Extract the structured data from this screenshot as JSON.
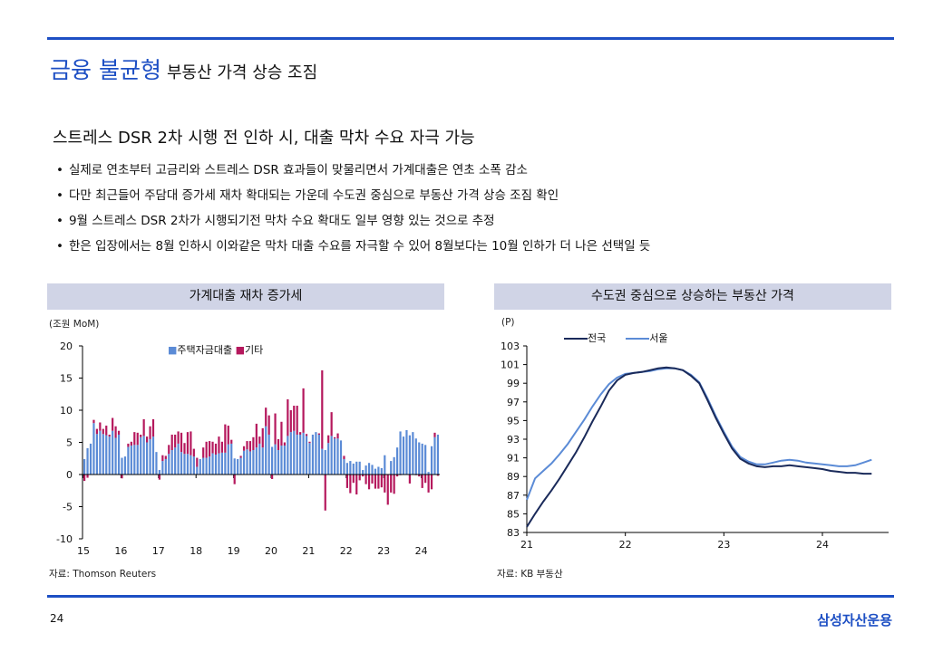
{
  "header": {
    "title_accent": "금융 불균형",
    "title_rest": "부동산 가격 상승 조짐"
  },
  "subtitle": "스트레스 DSR 2차 시행 전 인하 시, 대출 막차 수요 자극 가능",
  "bullets": [
    "실제로 연초부터 고금리와 스트레스 DSR 효과들이 맞물리면서 가계대출은 연초 소폭 감소",
    "다만 최근들어 주담대 증가세 재차 확대되는 가운데 수도권 중심으로 부동산 가격 상승 조짐 확인",
    "9월 스트레스 DSR 2차가 시행되기전 막차 수요 확대도 일부 영향 있는 것으로 추정",
    "한은 입장에서는 8월 인하시 이와같은 막차 대출 수요를 자극할 수 있어 8월보다는 10월 인하가 더 나은 선택일 듯"
  ],
  "footer": {
    "page": "24",
    "logo": "삼성자산운용"
  },
  "colors": {
    "accent": "#1d4fc4",
    "housing": "#5b8bd6",
    "other": "#b5185d",
    "nation": "#1a2a5a",
    "seoul": "#5b8bd6"
  },
  "chart_data": [
    {
      "type": "bar",
      "title": "가계대출 재차 증가세",
      "unit": "(조원 MoM)",
      "source": "자료:  Thomson Reuters",
      "ylim": [
        -10,
        20
      ],
      "yticks": [
        "20",
        "15",
        "10",
        "5",
        "0",
        "-5",
        "-10"
      ],
      "xticks": [
        "15",
        "16",
        "17",
        "18",
        "19",
        "20",
        "21",
        "22",
        "23",
        "24"
      ],
      "start": "2015-01",
      "stacked": true,
      "series": [
        {
          "name": "주택자금대출",
          "values": [
            2.4,
            4.1,
            4.8,
            8,
            6.3,
            6.8,
            6.3,
            6.1,
            5.9,
            6.8,
            5.7,
            6.2,
            2.6,
            2.8,
            4.3,
            4.5,
            4.6,
            4.6,
            5.8,
            6,
            5,
            5.5,
            5.9,
            3.5,
            0.7,
            2.1,
            2.4,
            3.2,
            3.8,
            4.2,
            4.8,
            3.5,
            3.2,
            3.2,
            3,
            2.8,
            1.2,
            2.4,
            2.6,
            2.6,
            2.8,
            3.3,
            3.1,
            3.3,
            3.4,
            3.4,
            4.7,
            4.8,
            2.5,
            2.4,
            2.6,
            3.7,
            3.9,
            3.6,
            3.8,
            4.2,
            4.8,
            4.2,
            7.5,
            6.2,
            4.3,
            4.7,
            3.8,
            4.5,
            4.5,
            6,
            6.6,
            6.8,
            6.2,
            6.2,
            6.5,
            6,
            4.9,
            6.2,
            6.6,
            6.2,
            4,
            3.8,
            4.9,
            6,
            5.6,
            5.6,
            5.3,
            2.4,
            1.8,
            2.1,
            1.7,
            2,
            2,
            0.7,
            1.4,
            1.8,
            1.5,
            0.9,
            1.2,
            1,
            3,
            0,
            2.1,
            2.7,
            4.2,
            6.7,
            5.9,
            6.9,
            6.1,
            6.6,
            5.6,
            5,
            4.8,
            4.6,
            0.4,
            4.4,
            5.8,
            6.2
          ]
        },
        {
          "name": "기타",
          "values": [
            -1,
            -0.5,
            0,
            0.5,
            0.8,
            1.3,
            0.8,
            1.5,
            0.3,
            2,
            1.8,
            0.6,
            -0.6,
            0,
            0.5,
            0.6,
            2,
            1.9,
            0.4,
            2.6,
            0.9,
            2,
            2.7,
            0,
            -0.8,
            0.9,
            0.5,
            1.4,
            2.4,
            2,
            1.9,
            3,
            1.7,
            3.4,
            3.7,
            1.2,
            1.4,
            0,
            1.6,
            2.5,
            2.4,
            1.8,
            1.7,
            2.6,
            1.7,
            4.4,
            2.9,
            0.6,
            -1.5,
            0,
            0.3,
            0.7,
            1.3,
            1.6,
            2,
            3.7,
            1.1,
            3,
            2.9,
            3,
            -0.7,
            4.8,
            1.7,
            3.7,
            0.5,
            5.7,
            3.4,
            3.9,
            4.5,
            0.4,
            6.9,
            0.3,
            0.2,
            0,
            0,
            0.2,
            12.2,
            -5.6,
            1.2,
            3.7,
            0.2,
            0.8,
            0,
            0.5,
            -2.1,
            -2.9,
            -1.3,
            -3.1,
            -0.9,
            -0.3,
            -1.5,
            -2.3,
            -1.4,
            -2.2,
            -2.2,
            -2,
            -2.8,
            -4.7,
            -2.8,
            -3,
            -0.3,
            -0.1,
            0,
            0,
            -1.4,
            0,
            -0.1,
            -0.3,
            -2.1,
            -1.3,
            -2.8,
            -2.3,
            0.7,
            -0.2
          ]
        }
      ]
    },
    {
      "type": "line",
      "title": "수도권 중심으로 상승하는 부동산 가격",
      "unit": "(P)",
      "source": "자료: KB 부동산",
      "ylim": [
        83,
        103
      ],
      "yticks": [
        "103",
        "101",
        "99",
        "97",
        "95",
        "93",
        "91",
        "89",
        "87",
        "85",
        "83"
      ],
      "xticks": [
        "21",
        "22",
        "23",
        "24"
      ],
      "start": "2021-01",
      "series": [
        {
          "name": "전국",
          "values": [
            83.6,
            85,
            86.3,
            87.5,
            88.8,
            90.2,
            91.6,
            93.2,
            94.9,
            96.5,
            98.2,
            99.3,
            99.9,
            100.1,
            100.2,
            100.4,
            100.6,
            100.7,
            100.6,
            100.4,
            99.8,
            99,
            97.2,
            95.3,
            93.6,
            92,
            90.9,
            90.4,
            90.1,
            90,
            90.1,
            90.1,
            90.2,
            90.1,
            90,
            89.9,
            89.8,
            89.6,
            89.5,
            89.4,
            89.4,
            89.3,
            89.3
          ]
        },
        {
          "name": "서울",
          "values": [
            86.5,
            88.8,
            89.6,
            90.4,
            91.4,
            92.5,
            93.8,
            95.1,
            96.5,
            97.8,
            98.9,
            99.6,
            100,
            100.1,
            100.2,
            100.3,
            100.5,
            100.6,
            100.6,
            100.4,
            99.9,
            99.1,
            97.4,
            95.5,
            93.8,
            92.2,
            91.1,
            90.6,
            90.3,
            90.3,
            90.5,
            90.7,
            90.8,
            90.7,
            90.5,
            90.4,
            90.3,
            90.2,
            90.1,
            90.1,
            90.2,
            90.5,
            90.8
          ]
        }
      ]
    }
  ]
}
